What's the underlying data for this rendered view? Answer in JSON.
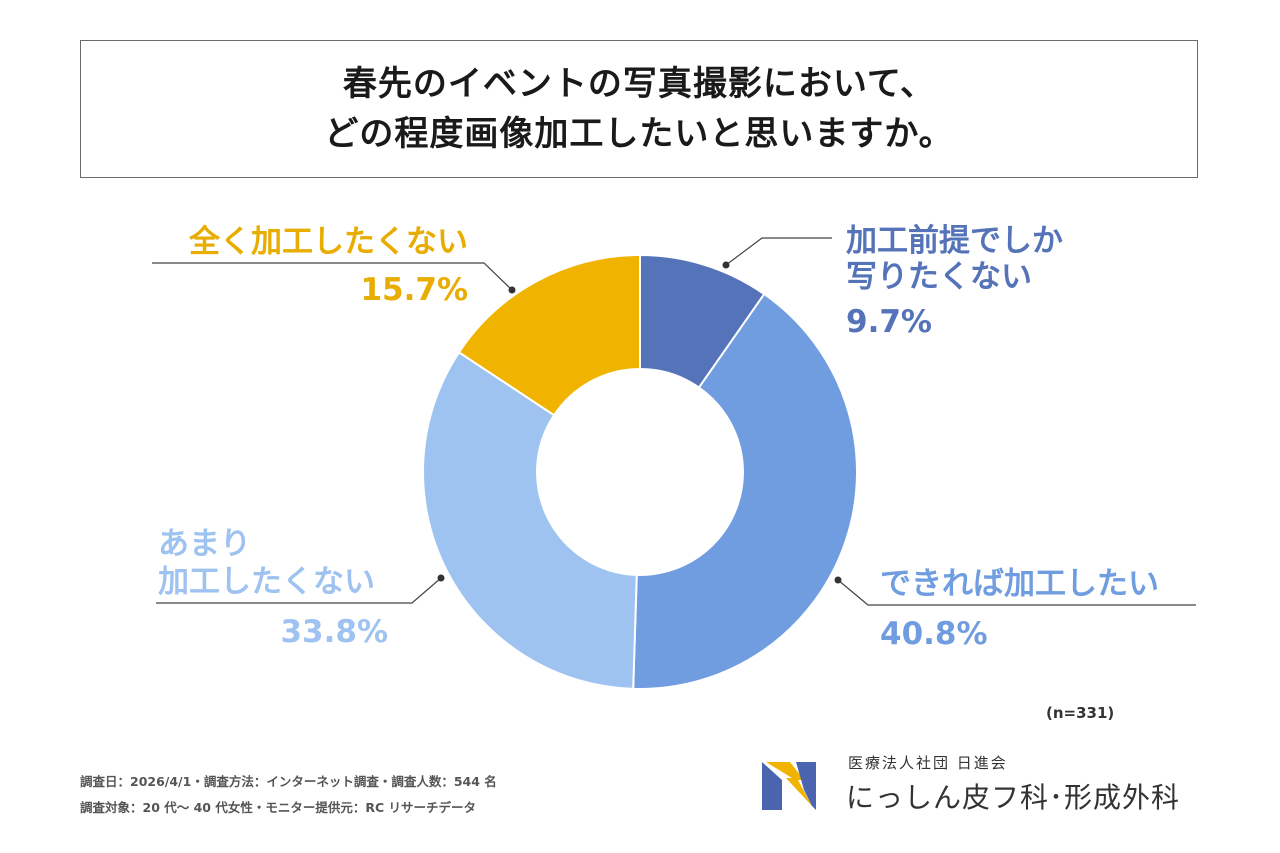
{
  "title": {
    "line1": "春先のイベントの写真撮影において、",
    "line2": "どの程度画像加工したいと思いますか。"
  },
  "chart_data": {
    "type": "pie",
    "slices": [
      {
        "label_lines": [
          "加工前提でしか",
          "写りたくない"
        ],
        "percent_text": "9.7%",
        "value": 9.7,
        "color": "#5573b8",
        "label_color": "#5573b8"
      },
      {
        "label_lines": [
          "できれば加工したい"
        ],
        "percent_text": "40.8%",
        "value": 40.8,
        "color": "#709de0",
        "label_color": "#709de0"
      },
      {
        "label_lines": [
          "あまり",
          "加工したくない"
        ],
        "percent_text": "33.8%",
        "value": 33.8,
        "color": "#9fc3f1",
        "label_color": "#9fc3f1"
      },
      {
        "label_lines": [
          "全く加工したくない"
        ],
        "percent_text": "15.7%",
        "value": 15.7,
        "color": "#f0b400",
        "label_color": "#e8ad00"
      }
    ],
    "sample_size": "(n=331)"
  },
  "footer": {
    "survey_line1": "調査日：2026/4/1・調査方法：インターネット調査・調査人数：544 名",
    "survey_line2": "調査対象：20 代〜 40 代女性・モニター提供元：RC リサーチデータ",
    "org_sub": "医療法人社団 日進会",
    "org_main": "にっしん皮フ科･形成外科",
    "logo_colors": {
      "blue": "#4a64b0",
      "yellow": "#f0b400"
    }
  }
}
